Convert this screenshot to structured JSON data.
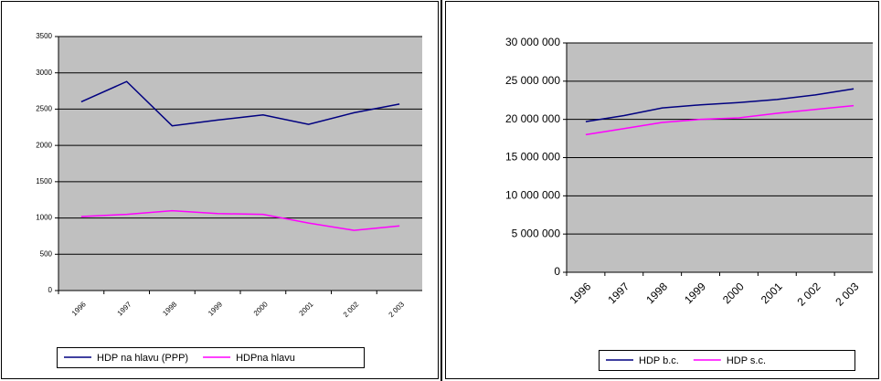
{
  "chart_data": [
    {
      "type": "line",
      "categories": [
        "1996",
        "1997",
        "1998",
        "1999",
        "2000",
        "2001",
        "2 002",
        "2 003"
      ],
      "series": [
        {
          "name": "HDP na hlavu (PPP)",
          "color": "#000080",
          "values": [
            2600,
            2880,
            2270,
            2350,
            2420,
            2290,
            2450,
            2570
          ]
        },
        {
          "name": "HDPna hlavu",
          "color": "#ff00ff",
          "values": [
            1020,
            1050,
            1100,
            1060,
            1050,
            930,
            830,
            890
          ]
        }
      ],
      "ylim": [
        0,
        3500
      ],
      "yticks": [
        0,
        500,
        1000,
        1500,
        2000,
        2500,
        3000,
        3500
      ],
      "grid": true,
      "legend": "bottom"
    },
    {
      "type": "line",
      "categories": [
        "1996",
        "1997",
        "1998",
        "1999",
        "2000",
        "2001",
        "2 002",
        "2 003"
      ],
      "series": [
        {
          "name": "HDP b.c.",
          "color": "#000080",
          "values": [
            19700000,
            20500000,
            21500000,
            21900000,
            22200000,
            22600000,
            23200000,
            24000000
          ]
        },
        {
          "name": "HDP s.c.",
          "color": "#ff00ff",
          "values": [
            18000000,
            18800000,
            19600000,
            20000000,
            20200000,
            20800000,
            21300000,
            21800000
          ]
        }
      ],
      "ylim": [
        0,
        30000000
      ],
      "yticks": [
        0,
        {
          "value": 5000000,
          "label": "5 000 000"
        },
        {
          "value": 10000000,
          "label": "10 000 000"
        },
        {
          "value": 15000000,
          "label": "15 000 000"
        },
        {
          "value": 20000000,
          "label": "20 000 000"
        },
        {
          "value": 25000000,
          "label": "25 000 000"
        },
        {
          "value": 30000000,
          "label": "30 000 000"
        }
      ],
      "grid": true,
      "legend": "bottom"
    }
  ]
}
